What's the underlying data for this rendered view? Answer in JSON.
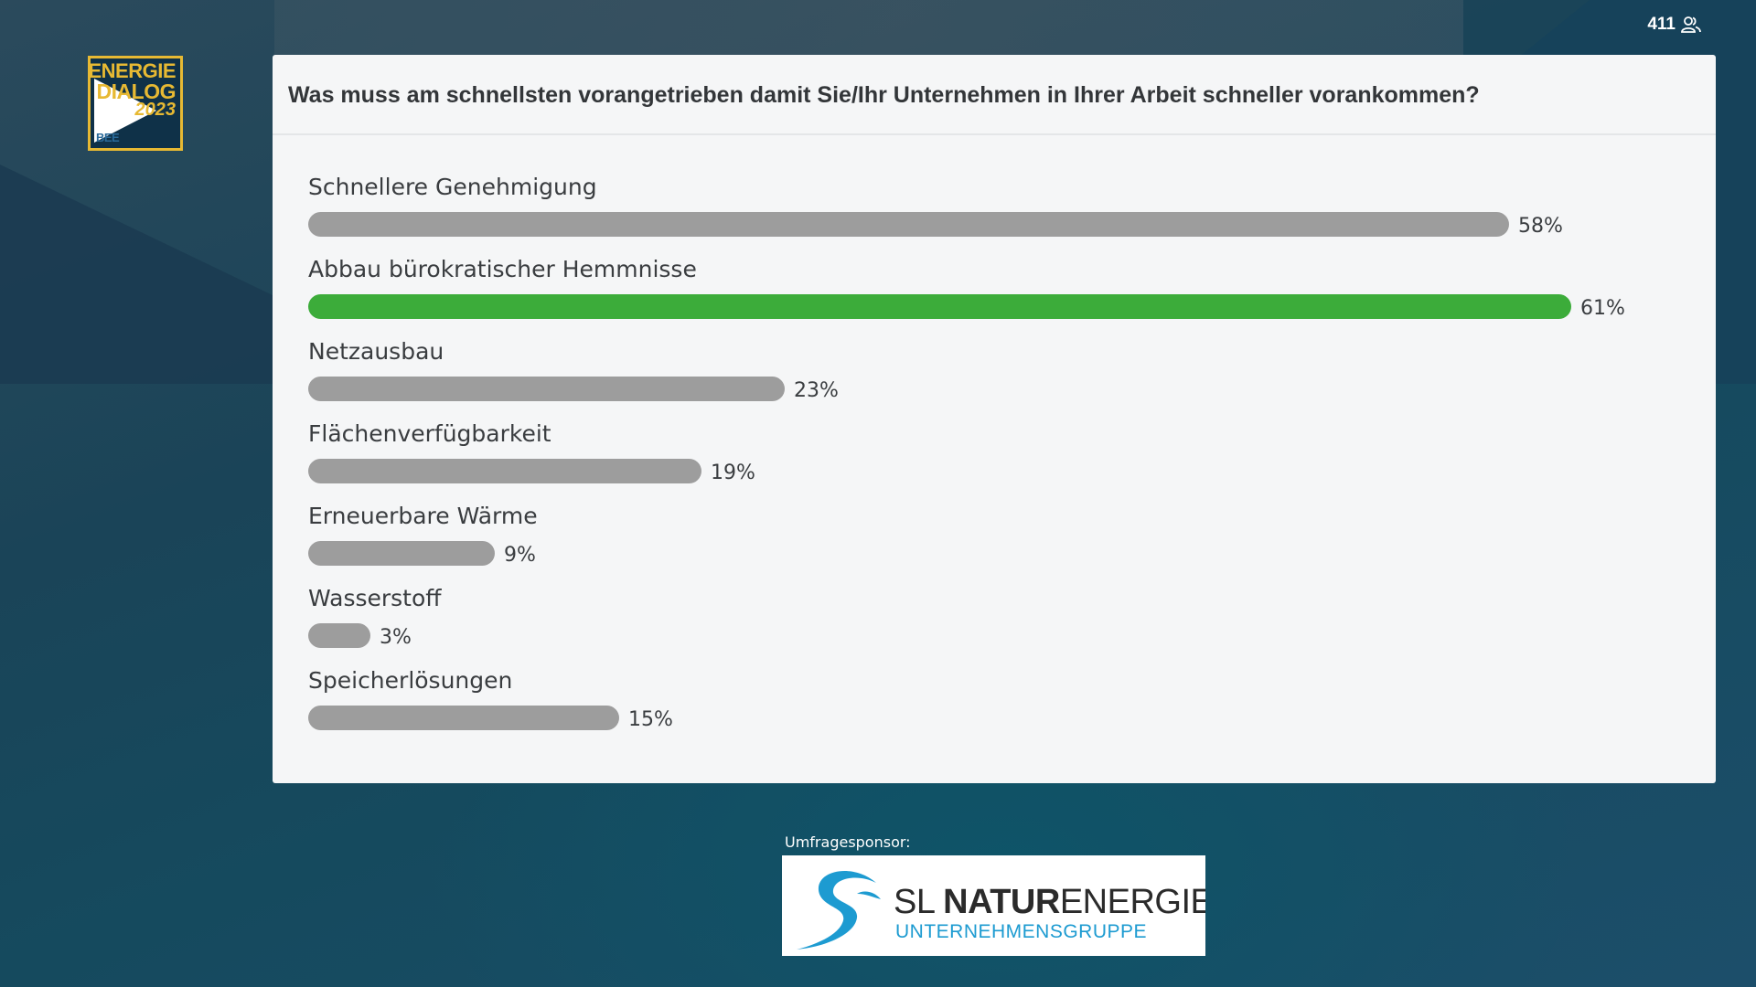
{
  "participants": {
    "count": "411",
    "icon": "people-icon"
  },
  "event_logo": {
    "line1": "ENERGIE",
    "line2": "DIALOG",
    "line3": "2023",
    "org": "BEE",
    "colors": {
      "frame": "#e7b933",
      "background": "#0f3148"
    }
  },
  "poll": {
    "question": "Was muss am schnellsten vorangetrieben damit Sie/Ihr Unternehmen in Ihrer Arbeit schneller vorankommen?",
    "options": [
      {
        "label": "Schnellere Genehmigung",
        "percent": 58,
        "percent_label": "58%",
        "leading": false
      },
      {
        "label": "Abbau bürokratischer Hemmnisse",
        "percent": 61,
        "percent_label": "61%",
        "leading": true
      },
      {
        "label": "Netzausbau",
        "percent": 23,
        "percent_label": "23%",
        "leading": false
      },
      {
        "label": "Flächenverfügbarkeit",
        "percent": 19,
        "percent_label": "19%",
        "leading": false
      },
      {
        "label": "Erneuerbare Wärme",
        "percent": 9,
        "percent_label": "9%",
        "leading": false
      },
      {
        "label": "Wasserstoff",
        "percent": 3,
        "percent_label": "3%",
        "leading": false
      },
      {
        "label": "Speicherlösungen",
        "percent": 15,
        "percent_label": "15%",
        "leading": false
      }
    ],
    "colors": {
      "bar": "#9d9d9d",
      "leading_bar": "#3cac3a"
    }
  },
  "sponsor": {
    "label": "Umfragesponsor:",
    "name_prefix": "SL ",
    "name_bold": "NATUR",
    "name_suffix": "ENERGIE",
    "subtitle": "UNTERNEHMENSGRUPPE",
    "colors": {
      "accent": "#1d9bd1"
    }
  }
}
